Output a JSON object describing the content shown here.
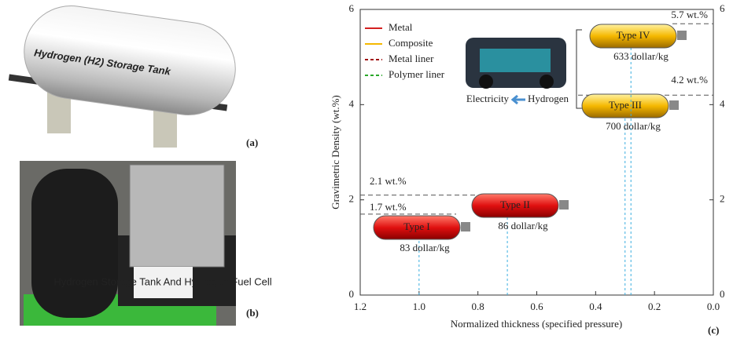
{
  "panel_labels": [
    "(a)",
    "(b)",
    "(c)"
  ],
  "photo_texts": {
    "tank": "Hydrogen (H2) Storage Tank",
    "sign": "Hydrogen Storage Tank And Hydrogen Fuel Cell"
  },
  "inset": {
    "left": "Electricity",
    "right": "Hydrogen"
  },
  "legend_items": [
    {
      "name": "Metal",
      "color": "#d42020",
      "dash": false
    },
    {
      "name": "Composite",
      "color": "#f5b800",
      "dash": false
    },
    {
      "name": "Metal liner",
      "color": "#a01010",
      "dash": true
    },
    {
      "name": "Polymer liner",
      "color": "#2aa82a",
      "dash": true
    }
  ],
  "chart_data": {
    "type": "scatter",
    "x_label": "Normalized thickness (specified pressure)",
    "y_label": "Gravimetric Density (wt.%)",
    "xlim": [
      1.2,
      0
    ],
    "xticks": [
      1.2,
      {
        "value": 1,
        "label": "1.0"
      },
      0.8,
      0.6,
      0.4,
      0.2,
      {
        "value": 0,
        "label": "0.0"
      }
    ],
    "ylim": [
      0,
      6
    ],
    "yticks": [
      0,
      2,
      4,
      6
    ],
    "y2lim": [
      0,
      6
    ],
    "y2ticks": [
      0,
      2,
      4,
      6
    ],
    "categories": [
      "Type I",
      "Type II",
      "Type III",
      "Type IV"
    ],
    "x": [
      1.0,
      0.7,
      0.3,
      0.28
    ],
    "values": [
      1.7,
      2.1,
      4.2,
      5.7
    ],
    "value_labels": [
      "1.7 wt.%",
      "2.1 wt.%",
      "4.2 wt.%",
      "5.7 wt.%"
    ],
    "costs": [
      83,
      86,
      700,
      633
    ],
    "cost_labels": [
      "83 dollar/kg",
      "86 dollar/kg",
      "700 dollar/kg",
      "633 dollar/kg"
    ],
    "colors": [
      "#d42020",
      "#d42020",
      "#f5b800",
      "#f5b800"
    ],
    "guide_color": "#3aaee0"
  }
}
